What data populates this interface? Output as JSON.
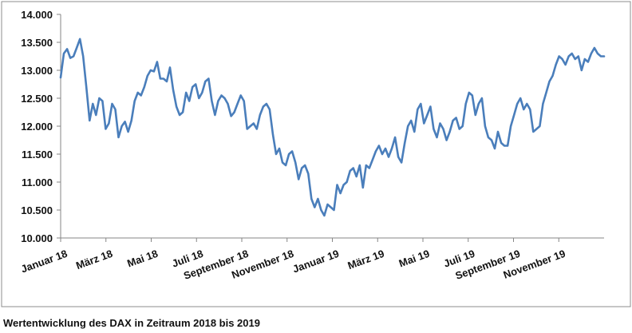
{
  "caption": "Wertentwicklung des DAX in Zeitraum 2018 bis 2019",
  "chart_data": {
    "type": "line",
    "title": "",
    "xlabel": "",
    "ylabel": "",
    "ylim": [
      10000,
      14000
    ],
    "xlim": [
      "2018-01",
      "2019-12"
    ],
    "yticks": [
      "10.000",
      "10.500",
      "11.000",
      "11.500",
      "12.000",
      "12.500",
      "13.000",
      "13.500",
      "14.000"
    ],
    "ytick_values": [
      10000,
      10500,
      11000,
      11500,
      12000,
      12500,
      13000,
      13500,
      14000
    ],
    "xticks": [
      "Januar 18",
      "März 18",
      "Mai 18",
      "Juli 18",
      "September 18",
      "November 18",
      "Januar 19",
      "März 19",
      "Mai 19",
      "Juli 19",
      "September 19",
      "November 19"
    ],
    "grid": false,
    "legend": "none",
    "line_color": "#4a7ebb",
    "series": [
      {
        "values": [
          12870,
          13300,
          13380,
          13220,
          13250,
          13400,
          13560,
          13250,
          12700,
          12100,
          12400,
          12200,
          12500,
          12450,
          11950,
          12050,
          12400,
          12300,
          11800,
          12000,
          12080,
          11900,
          12100,
          12450,
          12600,
          12550,
          12700,
          12900,
          13000,
          12980,
          13150,
          12850,
          12850,
          12800,
          13050,
          12650,
          12350,
          12200,
          12250,
          12600,
          12450,
          12700,
          12750,
          12500,
          12600,
          12800,
          12850,
          12450,
          12200,
          12450,
          12550,
          12500,
          12400,
          12180,
          12250,
          12400,
          12550,
          12450,
          11950,
          12000,
          12050,
          11950,
          12200,
          12350,
          12400,
          12300,
          11850,
          11500,
          11600,
          11350,
          11300,
          11500,
          11550,
          11350,
          11050,
          11250,
          11300,
          11150,
          10700,
          10550,
          10700,
          10500,
          10400,
          10600,
          10550,
          10500,
          10950,
          10800,
          10950,
          11000,
          11200,
          11250,
          11100,
          11300,
          10900,
          11300,
          11250,
          11400,
          11550,
          11650,
          11500,
          11600,
          11450,
          11600,
          11800,
          11450,
          11350,
          11700,
          12000,
          12100,
          11900,
          12300,
          12400,
          12050,
          12200,
          12350,
          11950,
          11800,
          12050,
          11950,
          11750,
          11900,
          12100,
          12150,
          11950,
          12000,
          12400,
          12600,
          12550,
          12200,
          12400,
          12500,
          12000,
          11800,
          11750,
          11600,
          11900,
          11700,
          11650,
          11650,
          12000,
          12200,
          12400,
          12500,
          12300,
          12400,
          12300,
          11900,
          11950,
          12000,
          12400,
          12600,
          12800,
          12900,
          13100,
          13250,
          13200,
          13100,
          13250,
          13300,
          13200,
          13250,
          13000,
          13200,
          13150,
          13300,
          13400,
          13300,
          13250,
          13250
        ]
      }
    ]
  }
}
